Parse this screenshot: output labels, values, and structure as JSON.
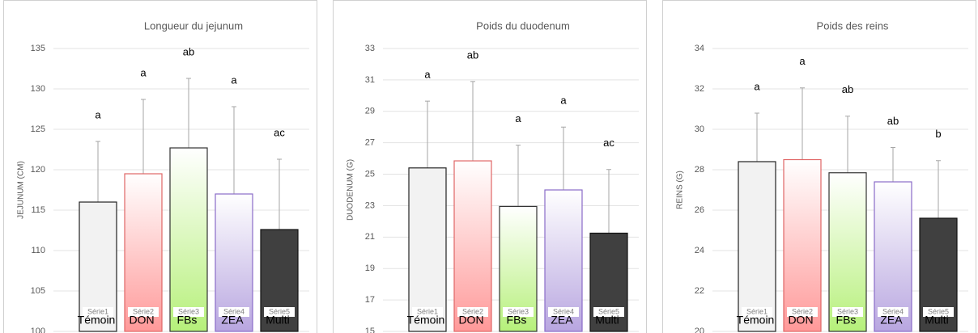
{
  "chart_data": [
    {
      "type": "bar",
      "title": "Longueur du jejunum",
      "ylabel": "JEJUNUM (CM)",
      "categories": [
        "1"
      ],
      "ylim": [
        100,
        135
      ],
      "yticks": [
        100,
        105,
        110,
        115,
        120,
        125,
        130,
        135
      ],
      "grid": true,
      "series": [
        {
          "name": "Série1",
          "label": "Témoin",
          "annotation": "a",
          "color": "#f2f2f2",
          "edgecolor": "#222222",
          "gradient": false,
          "values": [
            116
          ],
          "errors": [
            7.5
          ]
        },
        {
          "name": "Série2",
          "label": "DON",
          "annotation": "a",
          "color": "#ff9999",
          "edgecolor": "#e06666",
          "gradient": true,
          "values": [
            119.5
          ],
          "errors": [
            9.2
          ]
        },
        {
          "name": "Série3",
          "label": "FBs",
          "annotation": "ab",
          "color": "#b6f07a",
          "edgecolor": "#333333",
          "gradient": true,
          "values": [
            122.7
          ],
          "errors": [
            8.6
          ]
        },
        {
          "name": "Série4",
          "label": "ZEA",
          "annotation": "a",
          "color": "#b8a6e0",
          "edgecolor": "#8a6cc8",
          "gradient": true,
          "values": [
            117
          ],
          "errors": [
            10.8
          ]
        },
        {
          "name": "Série5",
          "label": "Multi",
          "annotation": "ac",
          "color": "#404040",
          "edgecolor": "#111111",
          "gradient": false,
          "values": [
            112.6
          ],
          "errors": [
            8.7
          ]
        }
      ]
    },
    {
      "type": "bar",
      "title": "Poids du duodenum",
      "ylabel": "DUODENUM (G)",
      "categories": [
        "1"
      ],
      "ylim": [
        15,
        33
      ],
      "yticks": [
        15,
        17,
        19,
        21,
        23,
        25,
        27,
        29,
        31,
        33
      ],
      "grid": true,
      "series": [
        {
          "name": "Série1",
          "label": "Témoin",
          "annotation": "a",
          "color": "#f2f2f2",
          "edgecolor": "#222222",
          "gradient": false,
          "values": [
            25.4
          ],
          "errors": [
            4.25
          ]
        },
        {
          "name": "Série2",
          "label": "DON",
          "annotation": "ab",
          "color": "#ff9999",
          "edgecolor": "#e06666",
          "gradient": true,
          "values": [
            25.85
          ],
          "errors": [
            5.05
          ]
        },
        {
          "name": "Série3",
          "label": "FBs",
          "annotation": "a",
          "color": "#b6f07a",
          "edgecolor": "#333333",
          "gradient": true,
          "values": [
            22.95
          ],
          "errors": [
            3.9
          ]
        },
        {
          "name": "Série4",
          "label": "ZEA",
          "annotation": "a",
          "color": "#b8a6e0",
          "edgecolor": "#8a6cc8",
          "gradient": true,
          "values": [
            24.0
          ],
          "errors": [
            4.0
          ]
        },
        {
          "name": "Série5",
          "label": "Multi",
          "annotation": "ac",
          "color": "#404040",
          "edgecolor": "#111111",
          "gradient": false,
          "values": [
            21.25
          ],
          "errors": [
            4.05
          ]
        }
      ]
    },
    {
      "type": "bar",
      "title": "Poids des reins",
      "ylabel": "REINS (G)",
      "categories": [
        "1"
      ],
      "ylim": [
        20,
        34
      ],
      "yticks": [
        20,
        22,
        24,
        26,
        28,
        30,
        32,
        34
      ],
      "grid": true,
      "series": [
        {
          "name": "Série1",
          "label": "Témoin",
          "annotation": "a",
          "color": "#f2f2f2",
          "edgecolor": "#222222",
          "gradient": false,
          "values": [
            28.4
          ],
          "errors": [
            2.4
          ]
        },
        {
          "name": "Série2",
          "label": "DON",
          "annotation": "a",
          "color": "#ff9999",
          "edgecolor": "#e06666",
          "gradient": true,
          "values": [
            28.5
          ],
          "errors": [
            3.55
          ]
        },
        {
          "name": "Série3",
          "label": "FBs",
          "annotation": "ab",
          "color": "#b6f07a",
          "edgecolor": "#333333",
          "gradient": true,
          "values": [
            27.85
          ],
          "errors": [
            2.8
          ]
        },
        {
          "name": "Série4",
          "label": "ZEA",
          "annotation": "ab",
          "color": "#b8a6e0",
          "edgecolor": "#8a6cc8",
          "gradient": true,
          "values": [
            27.4
          ],
          "errors": [
            1.7
          ]
        },
        {
          "name": "Série5",
          "label": "Multi",
          "annotation": "b",
          "color": "#404040",
          "edgecolor": "#111111",
          "gradient": false,
          "values": [
            25.6
          ],
          "errors": [
            2.85
          ]
        }
      ]
    }
  ]
}
